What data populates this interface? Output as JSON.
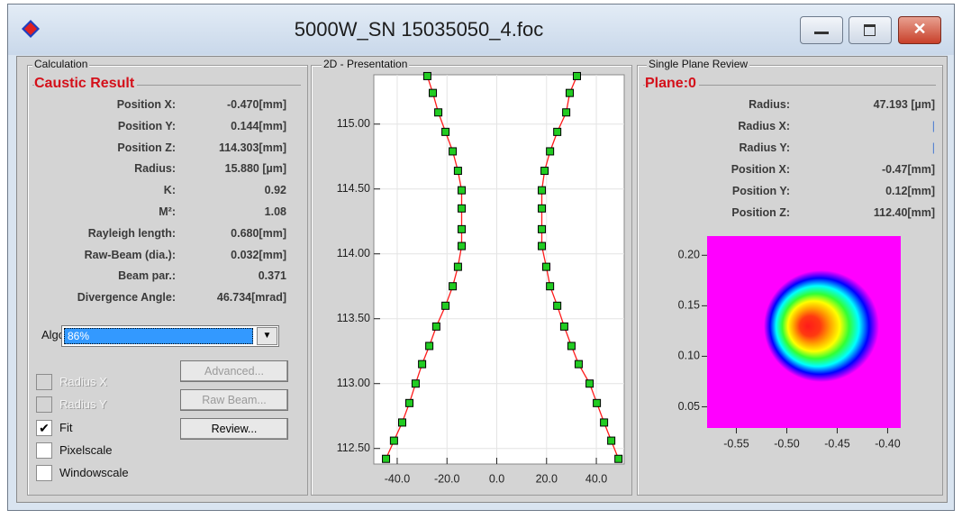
{
  "window": {
    "title": "5000W_SN 15035050_4.foc"
  },
  "calculation": {
    "title": "Calculation",
    "section": "Caustic Result",
    "rows": [
      [
        "Position X:",
        "-0.470[mm]"
      ],
      [
        "Position Y:",
        "0.144[mm]"
      ],
      [
        "Position Z:",
        "114.303[mm]"
      ],
      [
        "Radius:",
        "15.880 [µm]"
      ],
      [
        "K:",
        "0.92"
      ],
      [
        "M²:",
        "1.08"
      ],
      [
        "Rayleigh length:",
        "0.680[mm]"
      ],
      [
        "Raw-Beam (dia.):",
        "0.032[mm]"
      ],
      [
        "Beam par.:",
        "0.371"
      ],
      [
        "Divergence Angle:",
        "46.734[mrad]"
      ]
    ],
    "algo_label": "Algo:",
    "algo_value": "86%",
    "checkboxes": [
      {
        "label": "Radius X",
        "checked": false,
        "enabled": false
      },
      {
        "label": "Radius Y",
        "checked": false,
        "enabled": false
      },
      {
        "label": "Fit",
        "checked": true,
        "enabled": true
      },
      {
        "label": "Pixelscale",
        "checked": false,
        "enabled": true
      },
      {
        "label": "Windowscale",
        "checked": false,
        "enabled": true
      }
    ],
    "buttons": [
      {
        "label": "Advanced...",
        "enabled": false
      },
      {
        "label": "Raw Beam...",
        "enabled": false
      },
      {
        "label": "Review...",
        "enabled": true
      }
    ]
  },
  "presentation": {
    "title": "2D - Presentation",
    "type": "scatter",
    "grid": true,
    "xlim": [
      -49.4,
      51.2
    ],
    "ylim": [
      112.38,
      115.38
    ],
    "xticks": [
      {
        "value": -40,
        "label": "-40.0"
      },
      {
        "value": -20,
        "label": "-20.0"
      },
      {
        "value": 0,
        "label": "0.0"
      },
      {
        "value": 20,
        "label": "20.0"
      },
      {
        "value": 40,
        "label": "40.0"
      }
    ],
    "yticks": [
      {
        "value": 112.5,
        "label": "112.50"
      },
      {
        "value": 113,
        "label": "113.00"
      },
      {
        "value": 113.5,
        "label": "113.50"
      },
      {
        "value": 114,
        "label": "114.00"
      },
      {
        "value": 114.5,
        "label": "114.50"
      },
      {
        "value": 115,
        "label": "115.00"
      }
    ],
    "fit_color": "#ff1a1a",
    "series": [
      {
        "color": "#22cc22",
        "x": [
          -27.9,
          -25.7,
          -23.5,
          -20.6,
          -17.7,
          -15.6,
          -14.1,
          -14.1,
          -14.1,
          -14.1,
          -15.6,
          -17.7,
          -20.6,
          -24.3,
          -27.1,
          -30.0,
          -32.6,
          -35.1,
          -38.0,
          -41.3,
          -44.5
        ],
        "values": [
          115.37,
          115.24,
          115.09,
          114.94,
          114.79,
          114.64,
          114.49,
          114.35,
          114.19,
          114.06,
          113.9,
          113.75,
          113.6,
          113.44,
          113.29,
          113.15,
          113.0,
          112.85,
          112.7,
          112.56,
          112.42
        ]
      },
      {
        "color": "#22cc22",
        "x": [
          32.2,
          29.3,
          27.9,
          24.3,
          21.4,
          19.2,
          18.1,
          18.1,
          18.1,
          18.1,
          19.9,
          21.4,
          24.3,
          27.1,
          30.0,
          32.9,
          37.3,
          40.2,
          43.1,
          46.0,
          48.9
        ],
        "values": [
          115.37,
          115.24,
          115.09,
          114.94,
          114.79,
          114.64,
          114.49,
          114.35,
          114.19,
          114.06,
          113.9,
          113.75,
          113.6,
          113.44,
          113.29,
          113.15,
          113.0,
          112.85,
          112.7,
          112.56,
          112.42
        ]
      }
    ]
  },
  "review": {
    "title": "Single Plane Review",
    "section": "Plane:0",
    "rows": [
      [
        "Radius:",
        "47.193 [µm]"
      ],
      [
        "Radius X:",
        "|"
      ],
      [
        "Radius Y:",
        "|"
      ],
      [
        "Position X:",
        "-0.47[mm]"
      ],
      [
        "Position Y:",
        "0.12[mm]"
      ],
      [
        "Position Z:",
        "112.40[mm]"
      ]
    ],
    "spot": {
      "xlim": [
        -0.579,
        -0.387
      ],
      "ylim": [
        0.029,
        0.219
      ],
      "xticks": [
        -0.55,
        {
          "value": -0.5,
          "label": "-0.50"
        },
        -0.45,
        {
          "value": -0.4,
          "label": "-0.40"
        }
      ],
      "yticks": [
        0.05,
        {
          "value": 0.1,
          "label": "0.10"
        },
        0.15,
        {
          "value": 0.2,
          "label": "0.20"
        }
      ]
    }
  }
}
